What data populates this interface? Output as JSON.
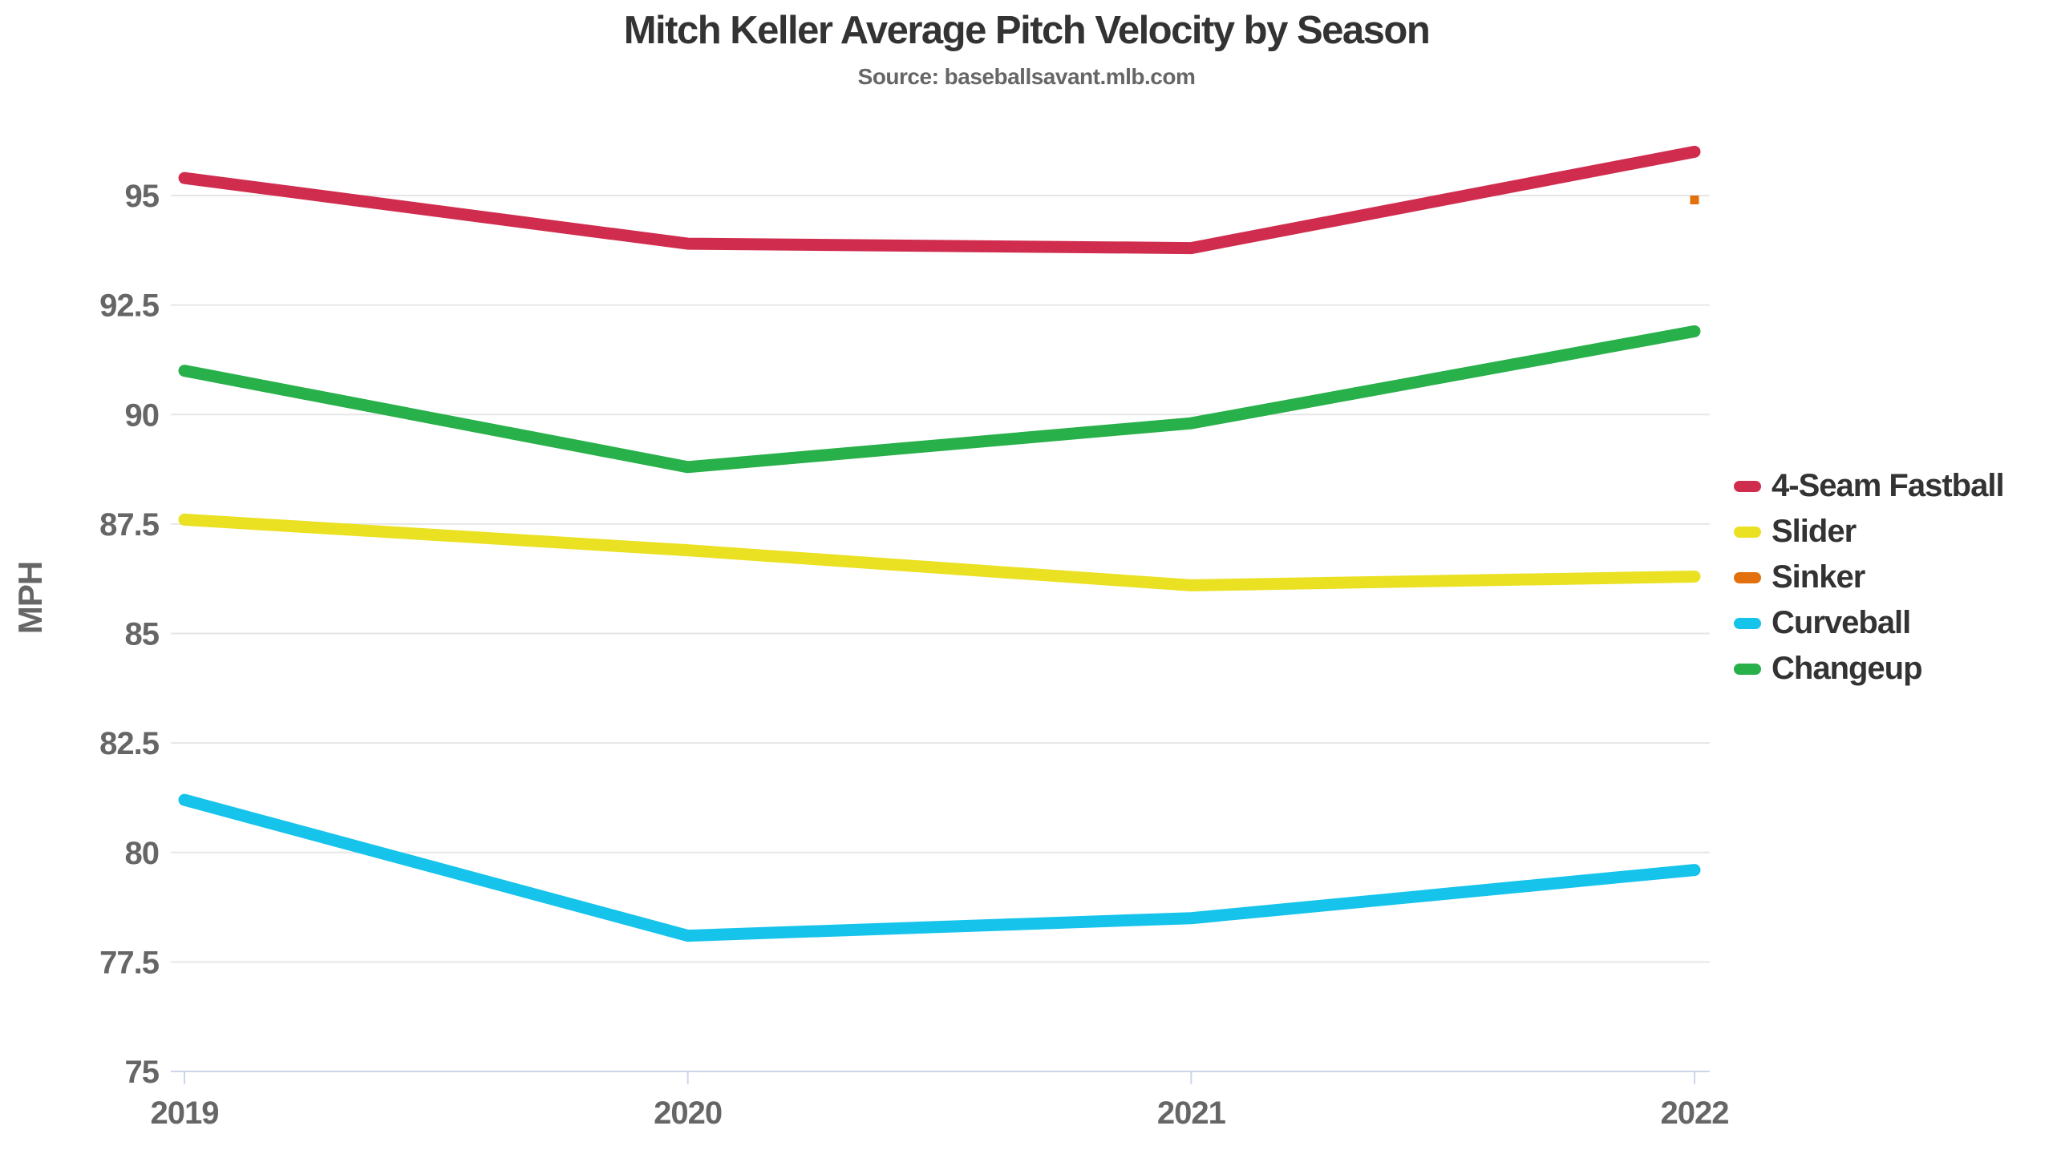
{
  "title": "Mitch Keller Average Pitch Velocity by Season",
  "subtitle": "Source: baseballsavant.mlb.com",
  "chart_data": {
    "type": "line",
    "categories": [
      "2019",
      "2020",
      "2021",
      "2022"
    ],
    "ylabel": "MPH",
    "ylim": [
      75,
      96.9
    ],
    "yticks": [
      75,
      77.5,
      80,
      82.5,
      85,
      87.5,
      90,
      92.5,
      95
    ],
    "grid": true,
    "legend_position": "right",
    "series": [
      {
        "name": "4-Seam Fastball",
        "color": "#d02c4e",
        "marker": "line",
        "values": [
          95.4,
          93.9,
          93.8,
          96.0
        ]
      },
      {
        "name": "Slider",
        "color": "#eae122",
        "marker": "line",
        "values": [
          87.6,
          86.9,
          86.1,
          86.3
        ]
      },
      {
        "name": "Sinker",
        "color": "#e2700d",
        "marker": "square",
        "values": [
          null,
          null,
          null,
          94.9
        ]
      },
      {
        "name": "Curveball",
        "color": "#15c3eb",
        "marker": "line",
        "values": [
          81.2,
          78.1,
          78.5,
          79.6
        ]
      },
      {
        "name": "Changeup",
        "color": "#28b04a",
        "marker": "line",
        "values": [
          91.0,
          88.8,
          89.8,
          91.9
        ]
      }
    ]
  },
  "colors": {
    "gridline": "#e6e6e6",
    "axis": "#ccd6eb",
    "tick_label": "#666666",
    "title_text": "#333333",
    "legend_text": "#333333",
    "background": "#ffffff"
  }
}
